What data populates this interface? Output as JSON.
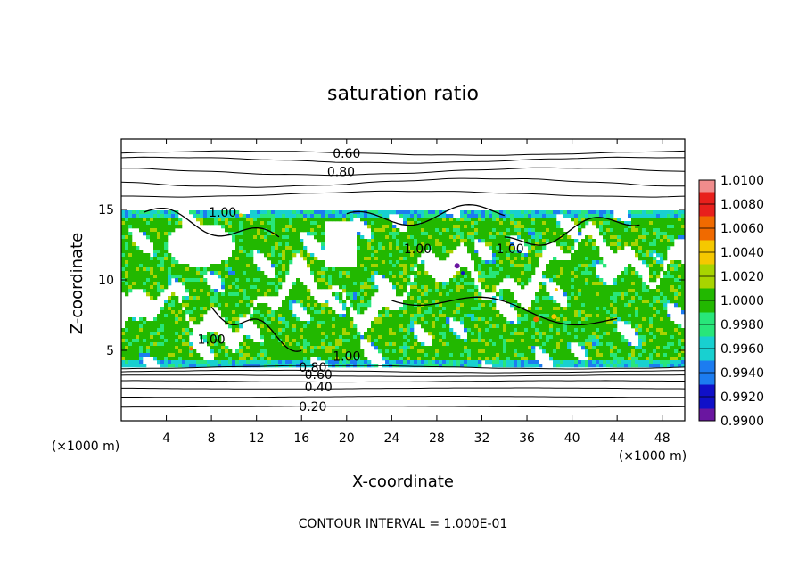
{
  "chart_data": {
    "type": "heatmap",
    "title": "saturation ratio",
    "xlabel": "X-coordinate",
    "ylabel": "Z-coordinate",
    "x_unit": "(×1000 m)",
    "y_unit": "(×1000 m)",
    "xlim": [
      0,
      50
    ],
    "ylim": [
      0,
      20
    ],
    "x_ticks": [
      4,
      8,
      12,
      16,
      20,
      24,
      28,
      32,
      36,
      40,
      44,
      48
    ],
    "y_ticks": [
      5,
      10,
      15
    ],
    "footer": "CONTOUR INTERVAL = 1.000E-01",
    "colorbar": {
      "labels": [
        "1.0100",
        "1.0080",
        "1.0060",
        "1.0040",
        "1.0020",
        "1.0000",
        "0.9980",
        "0.9960",
        "0.9940",
        "0.9920",
        "0.9900"
      ],
      "colors": [
        "#f08c8c",
        "#e8201c",
        "#f06a00",
        "#f5c800",
        "#a8d400",
        "#22b800",
        "#28e67a",
        "#18d0d0",
        "#1c7cf0",
        "#1010c8",
        "#6a16a0"
      ]
    },
    "contour_labels": [
      {
        "text": "0.60",
        "x": 20.0,
        "y": 19.0
      },
      {
        "text": "0.80",
        "x": 19.5,
        "y": 17.7
      },
      {
        "text": "1.00",
        "x": 9.0,
        "y": 14.8
      },
      {
        "text": "1.00",
        "x": 26.3,
        "y": 12.2
      },
      {
        "text": "1.00",
        "x": 34.5,
        "y": 12.2
      },
      {
        "text": "1.00",
        "x": 8.0,
        "y": 5.8
      },
      {
        "text": "1.00",
        "x": 20.0,
        "y": 4.6
      },
      {
        "text": "0.80",
        "x": 17.0,
        "y": 3.8
      },
      {
        "text": "0.60",
        "x": 17.5,
        "y": 3.3
      },
      {
        "text": "0.40",
        "x": 17.5,
        "y": 2.4
      },
      {
        "text": "0.20",
        "x": 17.0,
        "y": 1.0
      }
    ],
    "grid": false
  }
}
